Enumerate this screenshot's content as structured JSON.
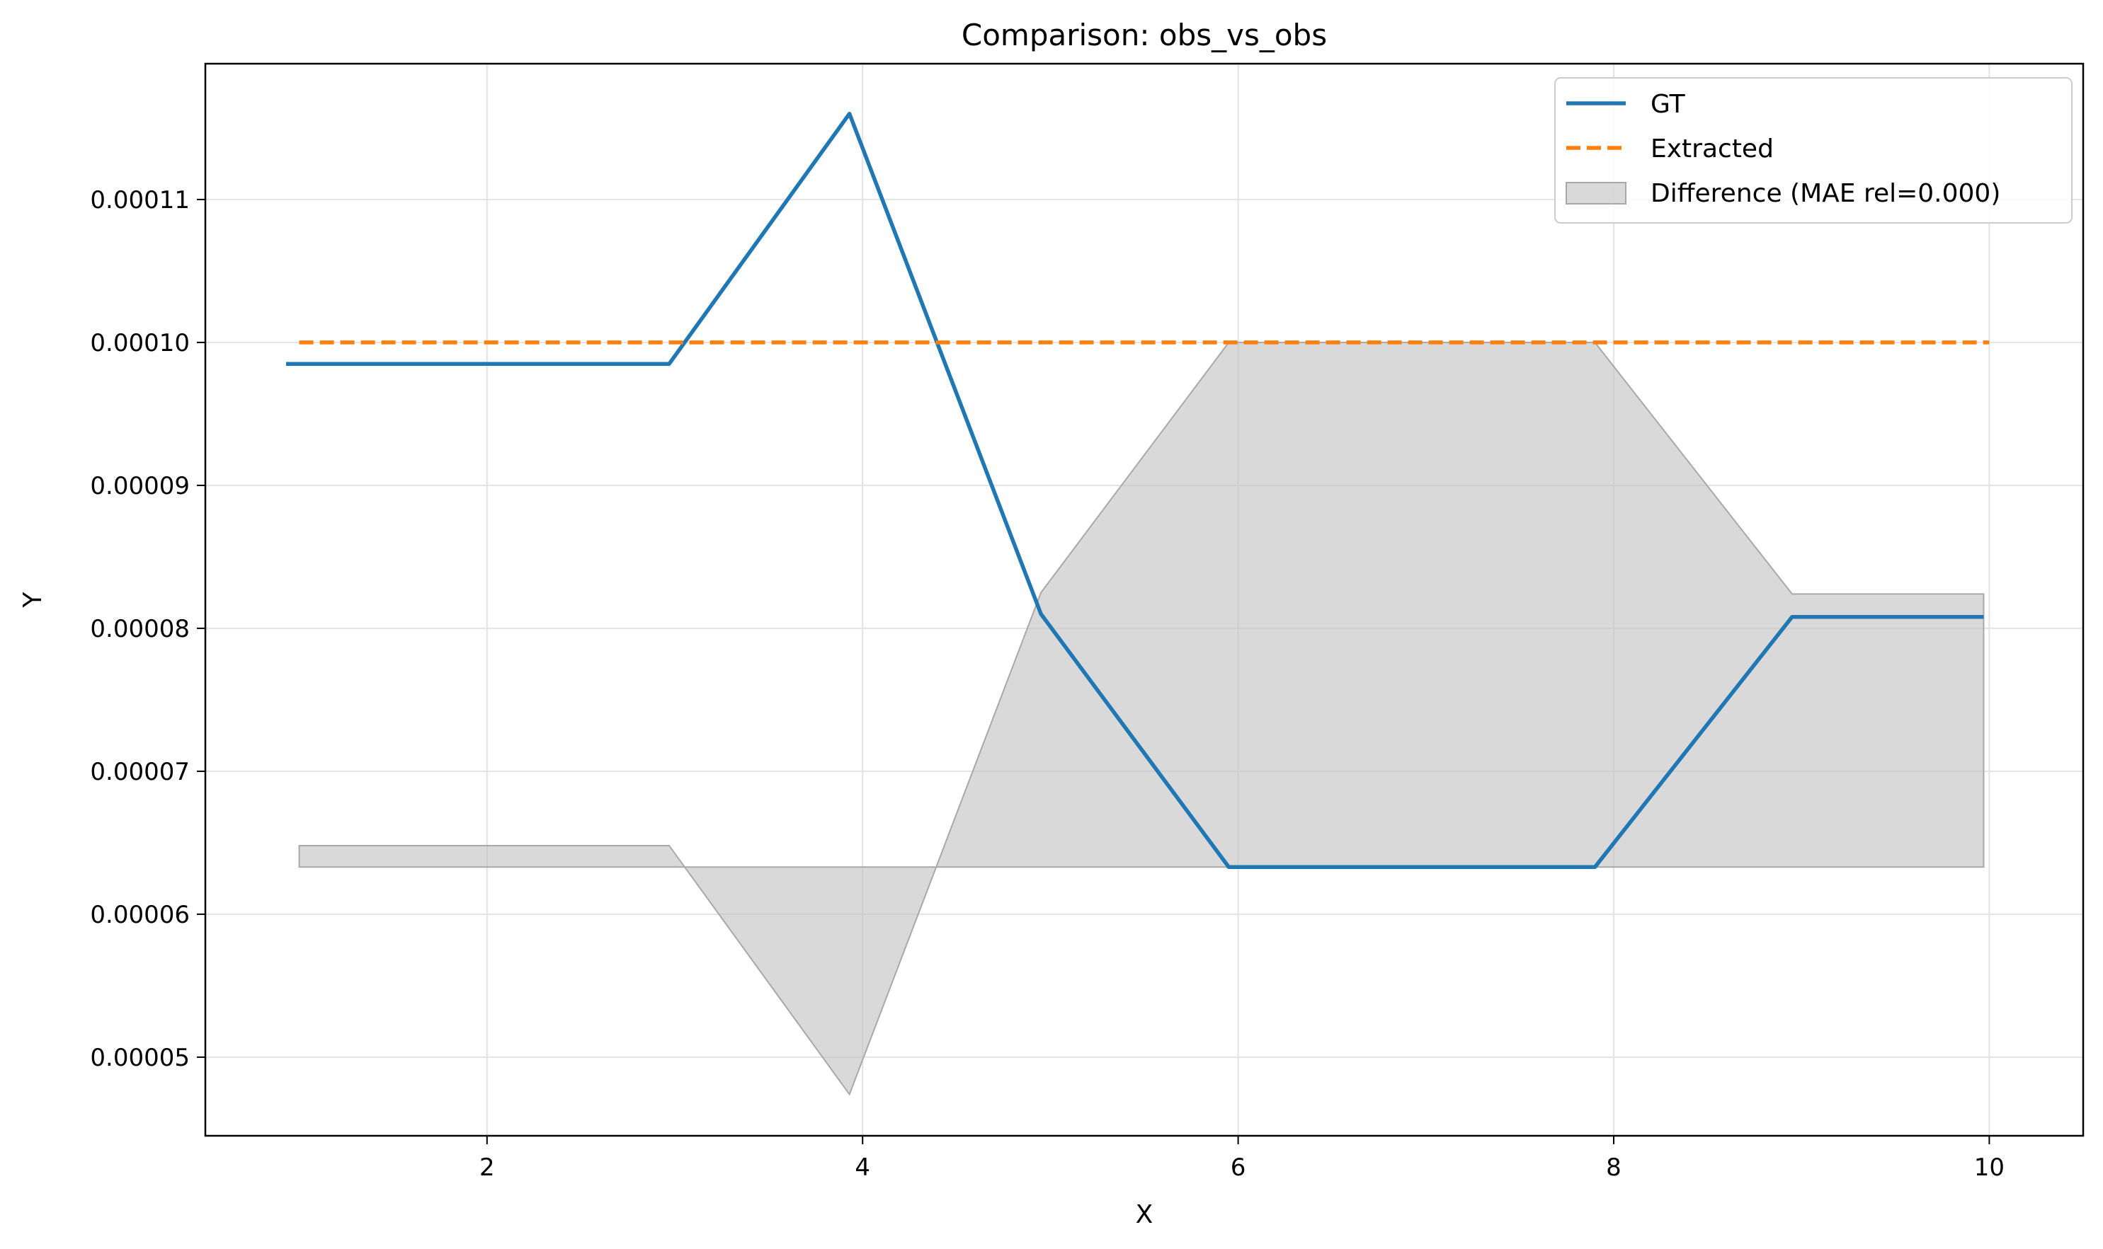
{
  "chart_data": {
    "type": "line",
    "title": "Comparison: obs_vs_obs",
    "xlabel": "X",
    "ylabel": "Y",
    "xlim": [
      0.5,
      10.5
    ],
    "ylim": [
      4.45e-05,
      0.0001195
    ],
    "x_ticks": [
      2,
      4,
      6,
      8,
      10
    ],
    "x_tick_labels": [
      "2",
      "4",
      "6",
      "8",
      "10"
    ],
    "y_ticks": [
      5e-05,
      6e-05,
      7e-05,
      8e-05,
      9e-05,
      0.0001,
      0.00011
    ],
    "y_tick_labels": [
      "0.00005",
      "0.00006",
      "0.00007",
      "0.00008",
      "0.00009",
      "0.00010",
      "0.00011"
    ],
    "grid": true,
    "legend_position": "top-right",
    "series": [
      {
        "name": "GT",
        "style": "solid",
        "color": "#1f77b4",
        "x": [
          0.93,
          2.97,
          3.93,
          4.95,
          5.95,
          7.9,
          8.95,
          9.97
        ],
        "y": [
          9.85e-05,
          9.85e-05,
          0.000116,
          8.1e-05,
          6.33e-05,
          6.33e-05,
          8.08e-05,
          8.08e-05
        ]
      },
      {
        "name": "Extracted",
        "style": "dashed",
        "color": "#ff7f0e",
        "x": [
          1.0,
          10.0
        ],
        "y": [
          0.0001,
          0.0001
        ]
      }
    ],
    "difference_band": {
      "name": "Difference (MAE rel=0.000)",
      "color": "#bfbfbf",
      "x": [
        1.0,
        2.97,
        3.93,
        4.95,
        5.95,
        7.9,
        8.95,
        9.97
      ],
      "baseline": 6.33e-05,
      "y": [
        6.48e-05,
        6.48e-05,
        4.74e-05,
        8.25e-05,
        0.0001,
        0.0001,
        8.24e-05,
        8.24e-05
      ]
    }
  }
}
